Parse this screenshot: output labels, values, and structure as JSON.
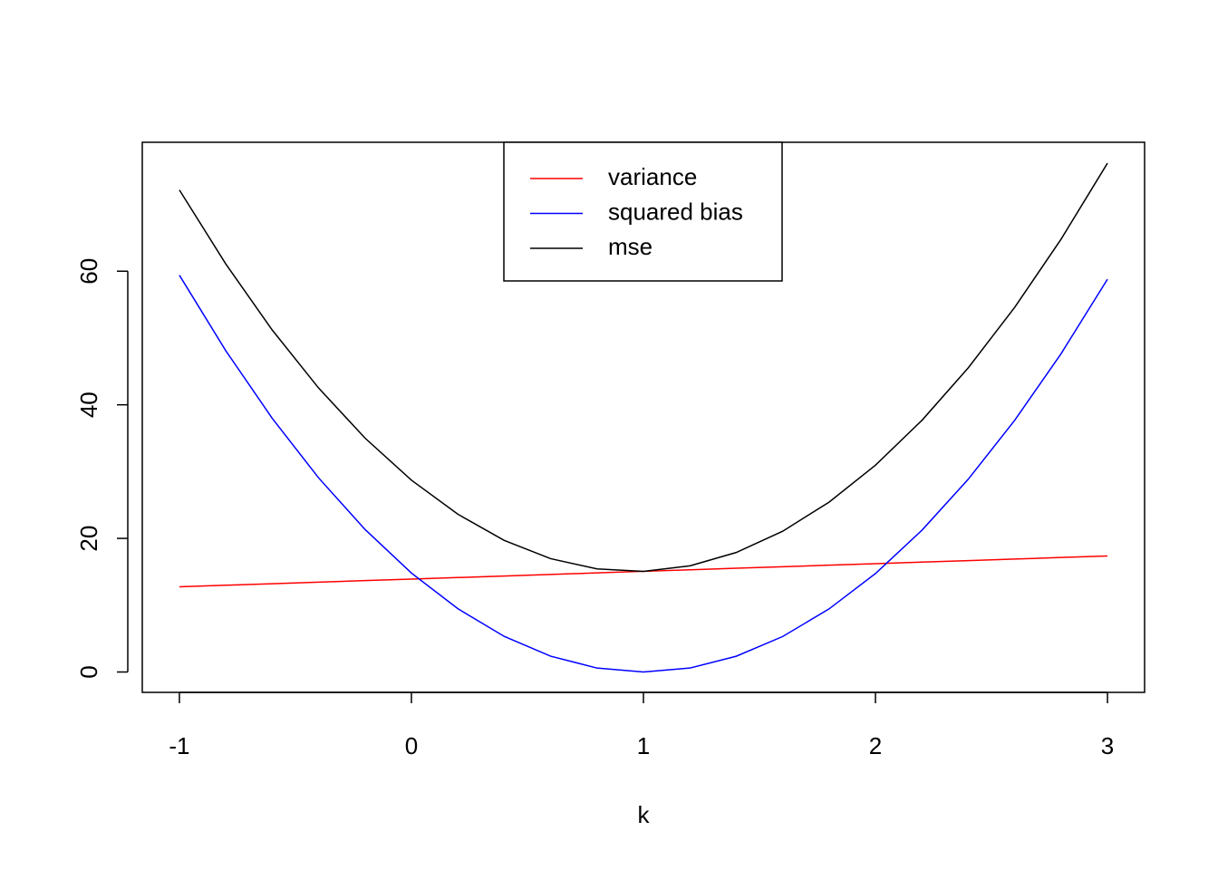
{
  "chart_data": {
    "type": "line",
    "x_label": "k",
    "x": [
      -1,
      -0.8,
      -0.6,
      -0.4,
      -0.2,
      0,
      0.2,
      0.4,
      0.6,
      0.8,
      1,
      1.2,
      1.4,
      1.6,
      1.8,
      2,
      2.2,
      2.4,
      2.6,
      2.8,
      3
    ],
    "series": [
      {
        "name": "variance",
        "color": "#ff0000",
        "values": [
          12.76,
          12.99,
          13.22,
          13.45,
          13.68,
          13.91,
          14.14,
          14.37,
          14.6,
          14.84,
          15.07,
          15.3,
          15.53,
          15.76,
          15.99,
          16.22,
          16.45,
          16.68,
          16.91,
          17.14,
          17.37
        ]
      },
      {
        "name": "squared bias",
        "color": "#0000ff",
        "values": [
          59.4,
          48.09,
          37.98,
          29.06,
          21.34,
          14.81,
          9.48,
          5.33,
          2.37,
          0.59,
          0,
          0.59,
          2.36,
          5.31,
          9.44,
          14.74,
          21.21,
          28.86,
          37.67,
          47.65,
          58.8
        ]
      },
      {
        "name": "mse",
        "color": "#000000",
        "values": [
          72.16,
          61.08,
          51.2,
          42.51,
          35.02,
          28.72,
          23.62,
          19.7,
          16.97,
          15.43,
          15.07,
          15.89,
          17.89,
          21.07,
          25.43,
          30.96,
          37.66,
          45.54,
          54.58,
          64.79,
          76.17
        ]
      }
    ],
    "xlim": [
      -1.16,
      3.16
    ],
    "ylim": [
      -3.05,
      79.3
    ],
    "xticks": [
      -1,
      0,
      1,
      2,
      3
    ],
    "yticks": [
      0,
      20,
      40,
      60
    ],
    "legend": "top"
  }
}
